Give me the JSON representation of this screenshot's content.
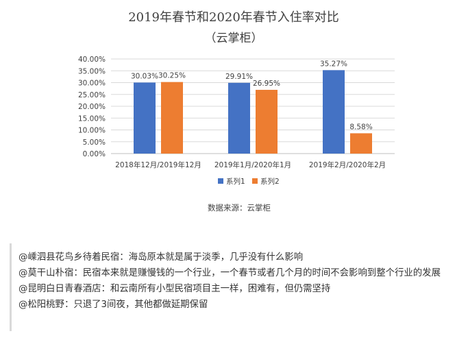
{
  "chart_data": {
    "type": "bar",
    "title": "2019年春节和2020年春节入住率对比",
    "subtitle": "（云掌柜）",
    "categories": [
      "2018年12月/2019年12月",
      "2019年1月/2020年1月",
      "2019年2月/2020年2月"
    ],
    "series": [
      {
        "name": "系列1",
        "color": "#4472c4",
        "values": [
          30.03,
          29.91,
          35.27
        ],
        "labels": [
          "30.03%",
          "29.91%",
          "35.27%"
        ]
      },
      {
        "name": "系列2",
        "color": "#ed7d31",
        "values": [
          30.25,
          26.95,
          8.58
        ],
        "labels": [
          "30.25%",
          "26.95%",
          "8.58%"
        ]
      }
    ],
    "ylim": [
      0,
      40
    ],
    "yticks": [
      "0.00%",
      "5.00%",
      "10.00%",
      "15.00%",
      "20.00%",
      "25.00%",
      "30.00%",
      "35.00%",
      "40.00%"
    ],
    "grid": true,
    "legend_position": "bottom",
    "source": "数据来源：云掌柜"
  },
  "quotes": [
    "@嵊泗县花鸟乡待着民宿：海岛原本就是属于淡季，几乎没有什么影响",
    "@莫干山朴宿：民宿本来就是赚慢钱的一个行业，一个春节或者几个月的时间不会影响到整个行业的发展",
    "@昆明白日青春酒店：和云南所有小型民宿项目主一样，困难有，但仍需坚持",
    "@松阳桃野：只退了3间夜，其他都做延期保留"
  ]
}
